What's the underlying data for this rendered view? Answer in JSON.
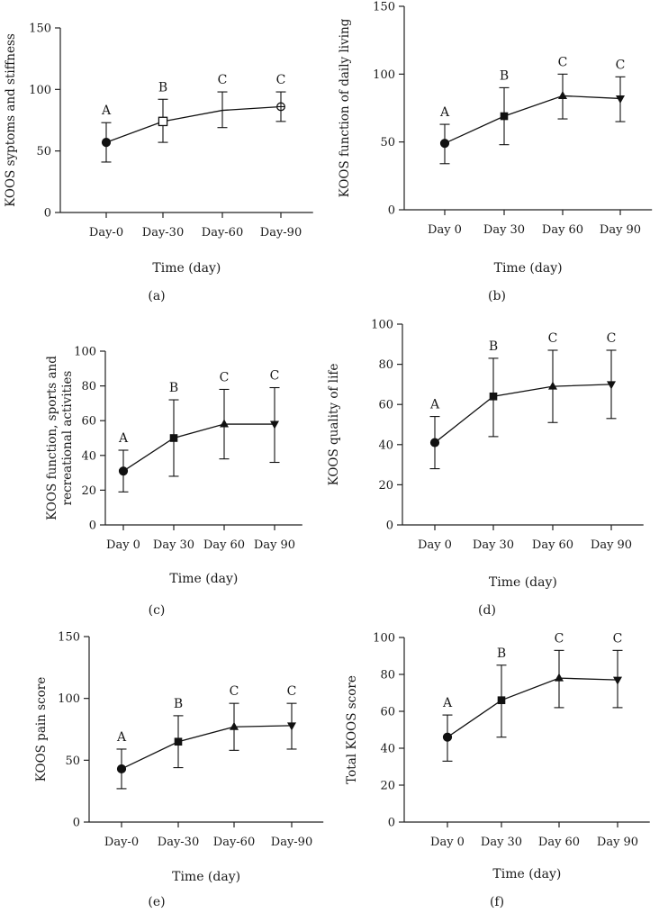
{
  "chart_data": [
    {
      "id": "a",
      "type": "line",
      "panel_label": "(a)",
      "xlabel": "Time (day)",
      "ylabel": "KOOS syptoms and stiffness",
      "categories": [
        "Day-0",
        "Day-30",
        "Day-60",
        "Day-90"
      ],
      "values": [
        57,
        74,
        83,
        86
      ],
      "err_low": [
        41,
        57,
        69,
        74
      ],
      "err_high": [
        73,
        92,
        98,
        98
      ],
      "markers": [
        "circle",
        "open-square",
        "none",
        "circle-cross"
      ],
      "sig": [
        "A",
        "B",
        "C",
        "C"
      ],
      "ylim": [
        0,
        150
      ],
      "yticks": [
        0,
        50,
        100,
        150
      ]
    },
    {
      "id": "b",
      "type": "line",
      "panel_label": "(b)",
      "xlabel": "Time (day)",
      "ylabel": "KOOS function of daily living",
      "categories": [
        "Day 0",
        "Day 30",
        "Day 60",
        "Day 90"
      ],
      "values": [
        49,
        69,
        84,
        82
      ],
      "err_low": [
        34,
        48,
        67,
        65
      ],
      "err_high": [
        63,
        90,
        100,
        98
      ],
      "markers": [
        "circle",
        "square",
        "triangle-up",
        "triangle-down"
      ],
      "sig": [
        "A",
        "B",
        "C",
        "C"
      ],
      "ylim": [
        0,
        150
      ],
      "yticks": [
        0,
        50,
        100,
        150
      ]
    },
    {
      "id": "c",
      "type": "line",
      "panel_label": "(c)",
      "xlabel": "Time (day)",
      "ylabel": [
        "KOOS function, sports and",
        "recreational activities"
      ],
      "categories": [
        "Day 0",
        "Day 30",
        "Day 60",
        "Day 90"
      ],
      "values": [
        31,
        50,
        58,
        58
      ],
      "err_low": [
        19,
        28,
        38,
        36
      ],
      "err_high": [
        43,
        72,
        78,
        79
      ],
      "markers": [
        "circle",
        "square",
        "triangle-up",
        "triangle-down"
      ],
      "sig": [
        "A",
        "B",
        "C",
        "C"
      ],
      "ylim": [
        0,
        100
      ],
      "yticks": [
        0,
        20,
        40,
        60,
        80,
        100
      ]
    },
    {
      "id": "d",
      "type": "line",
      "panel_label": "(d)",
      "xlabel": "Time (day)",
      "ylabel": "KOOS quality of life",
      "categories": [
        "Day 0",
        "Day 30",
        "Day 60",
        "Day 90"
      ],
      "values": [
        41,
        64,
        69,
        70
      ],
      "err_low": [
        28,
        44,
        51,
        53
      ],
      "err_high": [
        54,
        83,
        87,
        87
      ],
      "markers": [
        "circle",
        "square",
        "triangle-up",
        "triangle-down"
      ],
      "sig": [
        "A",
        "B",
        "C",
        "C"
      ],
      "ylim": [
        0,
        100
      ],
      "yticks": [
        0,
        20,
        40,
        60,
        80,
        100
      ]
    },
    {
      "id": "e",
      "type": "line",
      "panel_label": "(e)",
      "xlabel": "Time (day)",
      "ylabel": "KOOS pain score",
      "categories": [
        "Day-0",
        "Day-30",
        "Day-60",
        "Day-90"
      ],
      "values": [
        43,
        65,
        77,
        78
      ],
      "err_low": [
        27,
        44,
        58,
        59
      ],
      "err_high": [
        59,
        86,
        96,
        96
      ],
      "markers": [
        "circle",
        "square",
        "triangle-up",
        "triangle-down"
      ],
      "sig": [
        "A",
        "B",
        "C",
        "C"
      ],
      "ylim": [
        0,
        150
      ],
      "yticks": [
        0,
        50,
        100,
        150
      ]
    },
    {
      "id": "f",
      "type": "line",
      "panel_label": "(f)",
      "xlabel": "Time (day)",
      "ylabel": "Total KOOS score",
      "categories": [
        "Day 0",
        "Day 30",
        "Day 60",
        "Day 90"
      ],
      "values": [
        46,
        66,
        78,
        77
      ],
      "err_low": [
        33,
        46,
        62,
        62
      ],
      "err_high": [
        58,
        85,
        93,
        93
      ],
      "markers": [
        "circle",
        "square",
        "triangle-up",
        "triangle-down"
      ],
      "sig": [
        "A",
        "B",
        "C",
        "C"
      ],
      "ylim": [
        0,
        100
      ],
      "yticks": [
        0,
        20,
        40,
        60,
        80,
        100
      ]
    }
  ]
}
